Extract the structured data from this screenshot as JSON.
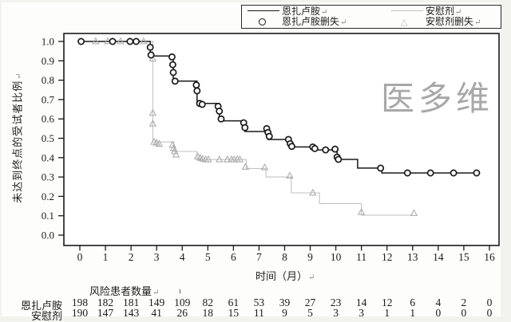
{
  "marks": {
    "return_mark": "↵",
    "stray_mark": "ι"
  },
  "watermark": {
    "text": "医多维",
    "color": "#9a9a9a"
  },
  "legend": {
    "items": [
      {
        "label": "恩扎卢胺",
        "swatch": "black-line"
      },
      {
        "label": "恩扎卢胺删失",
        "swatch": "black-circle"
      },
      {
        "label": "安慰剂",
        "swatch": "gray-line"
      },
      {
        "label": "安慰剂删失",
        "swatch": "gray-triangle"
      }
    ]
  },
  "chart_data": {
    "type": "line",
    "subtype": "kaplan-meier-step",
    "title": "",
    "xlabel": "时间（月）",
    "ylabel": "未达到终点的受试者比例",
    "xlim": [
      -0.6,
      16.4
    ],
    "ylim": [
      -0.05,
      1.04
    ],
    "grid": false,
    "legend_position": "top",
    "x_ticks": [
      0,
      1,
      2,
      3,
      4,
      5,
      6,
      7,
      8,
      9,
      10,
      11,
      12,
      13,
      14,
      15,
      16
    ],
    "y_ticks": [
      "1.0",
      "0.9",
      "0.8",
      "0.7",
      "0.6",
      "0.5",
      "0.4",
      "0.3",
      "0.2",
      "0.1",
      "0.0"
    ],
    "series": [
      {
        "name": "恩扎卢胺",
        "color": "#1a1a1a",
        "line_width": 1.5,
        "marker": "circle",
        "marker_color": "#1a1a1a",
        "steps": [
          [
            0,
            1.0
          ],
          [
            2.75,
            1.0
          ],
          [
            2.75,
            0.925
          ],
          [
            3.65,
            0.925
          ],
          [
            3.65,
            0.795
          ],
          [
            4.58,
            0.795
          ],
          [
            4.58,
            0.68
          ],
          [
            5.45,
            0.68
          ],
          [
            5.45,
            0.59
          ],
          [
            6.45,
            0.59
          ],
          [
            6.45,
            0.535
          ],
          [
            7.35,
            0.535
          ],
          [
            7.35,
            0.494
          ],
          [
            8.25,
            0.494
          ],
          [
            8.25,
            0.455
          ],
          [
            9.15,
            0.455
          ],
          [
            9.15,
            0.44
          ],
          [
            10.05,
            0.44
          ],
          [
            10.05,
            0.391
          ],
          [
            10.85,
            0.391
          ],
          [
            10.85,
            0.346
          ],
          [
            11.8,
            0.346
          ],
          [
            11.8,
            0.321
          ],
          [
            15.5,
            0.321
          ]
        ],
        "censors": [
          [
            0.05,
            1.0
          ],
          [
            1.28,
            1.0
          ],
          [
            1.96,
            1.0
          ],
          [
            2.2,
            1.0
          ],
          [
            2.75,
            0.97
          ],
          [
            2.78,
            0.93
          ],
          [
            3.6,
            0.92
          ],
          [
            3.63,
            0.88
          ],
          [
            3.65,
            0.84
          ],
          [
            3.72,
            0.795
          ],
          [
            4.55,
            0.775
          ],
          [
            4.58,
            0.745
          ],
          [
            4.68,
            0.68
          ],
          [
            4.78,
            0.675
          ],
          [
            5.4,
            0.665
          ],
          [
            5.45,
            0.64
          ],
          [
            5.52,
            0.6
          ],
          [
            6.4,
            0.58
          ],
          [
            6.45,
            0.555
          ],
          [
            7.3,
            0.55
          ],
          [
            7.35,
            0.53
          ],
          [
            7.4,
            0.51
          ],
          [
            8.15,
            0.494
          ],
          [
            8.22,
            0.472
          ],
          [
            8.28,
            0.458
          ],
          [
            9.1,
            0.455
          ],
          [
            9.18,
            0.447
          ],
          [
            9.6,
            0.44
          ],
          [
            9.97,
            0.444
          ],
          [
            10.05,
            0.403
          ],
          [
            10.1,
            0.391
          ],
          [
            11.75,
            0.346
          ],
          [
            12.8,
            0.321
          ],
          [
            13.7,
            0.321
          ],
          [
            14.6,
            0.321
          ],
          [
            15.5,
            0.321
          ]
        ]
      },
      {
        "name": "安慰剂",
        "color": "#c2c2c2",
        "line_width": 1.1,
        "marker": "triangle",
        "marker_color": "#aeaeae",
        "steps": [
          [
            0,
            1.0
          ],
          [
            2.85,
            1.0
          ],
          [
            2.85,
            0.481
          ],
          [
            3.67,
            0.481
          ],
          [
            3.67,
            0.432
          ],
          [
            4.58,
            0.432
          ],
          [
            4.58,
            0.39
          ],
          [
            6.5,
            0.39
          ],
          [
            6.5,
            0.344
          ],
          [
            7.27,
            0.344
          ],
          [
            7.27,
            0.3
          ],
          [
            8.26,
            0.3
          ],
          [
            8.26,
            0.218
          ],
          [
            9.36,
            0.218
          ],
          [
            9.36,
            0.163
          ],
          [
            11.0,
            0.163
          ],
          [
            11.0,
            0.103
          ],
          [
            13.05,
            0.103
          ]
        ],
        "censors": [
          [
            0.62,
            1.0
          ],
          [
            1.09,
            1.0
          ],
          [
            1.59,
            1.0
          ],
          [
            2.49,
            1.0
          ],
          [
            2.85,
            0.91
          ],
          [
            2.85,
            0.63
          ],
          [
            2.85,
            0.575
          ],
          [
            2.9,
            0.481
          ],
          [
            3.0,
            0.476
          ],
          [
            3.1,
            0.47
          ],
          [
            3.62,
            0.465
          ],
          [
            3.66,
            0.448
          ],
          [
            3.7,
            0.432
          ],
          [
            3.76,
            0.415
          ],
          [
            4.6,
            0.405
          ],
          [
            4.7,
            0.398
          ],
          [
            4.8,
            0.393
          ],
          [
            4.92,
            0.39
          ],
          [
            5.02,
            0.39
          ],
          [
            5.45,
            0.39
          ],
          [
            5.76,
            0.39
          ],
          [
            5.92,
            0.39
          ],
          [
            6.02,
            0.39
          ],
          [
            6.15,
            0.39
          ],
          [
            6.25,
            0.39
          ],
          [
            6.47,
            0.352
          ],
          [
            7.22,
            0.349
          ],
          [
            8.2,
            0.306
          ],
          [
            9.1,
            0.218
          ],
          [
            11.0,
            0.118
          ],
          [
            13.05,
            0.113
          ]
        ]
      }
    ],
    "risk_table": {
      "header": "风险患者数量",
      "time_points": [
        0,
        1,
        2,
        3,
        4,
        5,
        6,
        7,
        8,
        9,
        10,
        11,
        12,
        13,
        14,
        15,
        16
      ],
      "rows": [
        {
          "label": "恩扎卢胺",
          "values": [
            198,
            182,
            181,
            149,
            109,
            82,
            61,
            53,
            39,
            27,
            23,
            14,
            12,
            6,
            4,
            2,
            0
          ]
        },
        {
          "label": "安慰剂",
          "values": [
            190,
            147,
            143,
            41,
            26,
            18,
            15,
            11,
            9,
            5,
            3,
            3,
            1,
            1,
            0,
            0,
            0
          ]
        }
      ]
    }
  }
}
